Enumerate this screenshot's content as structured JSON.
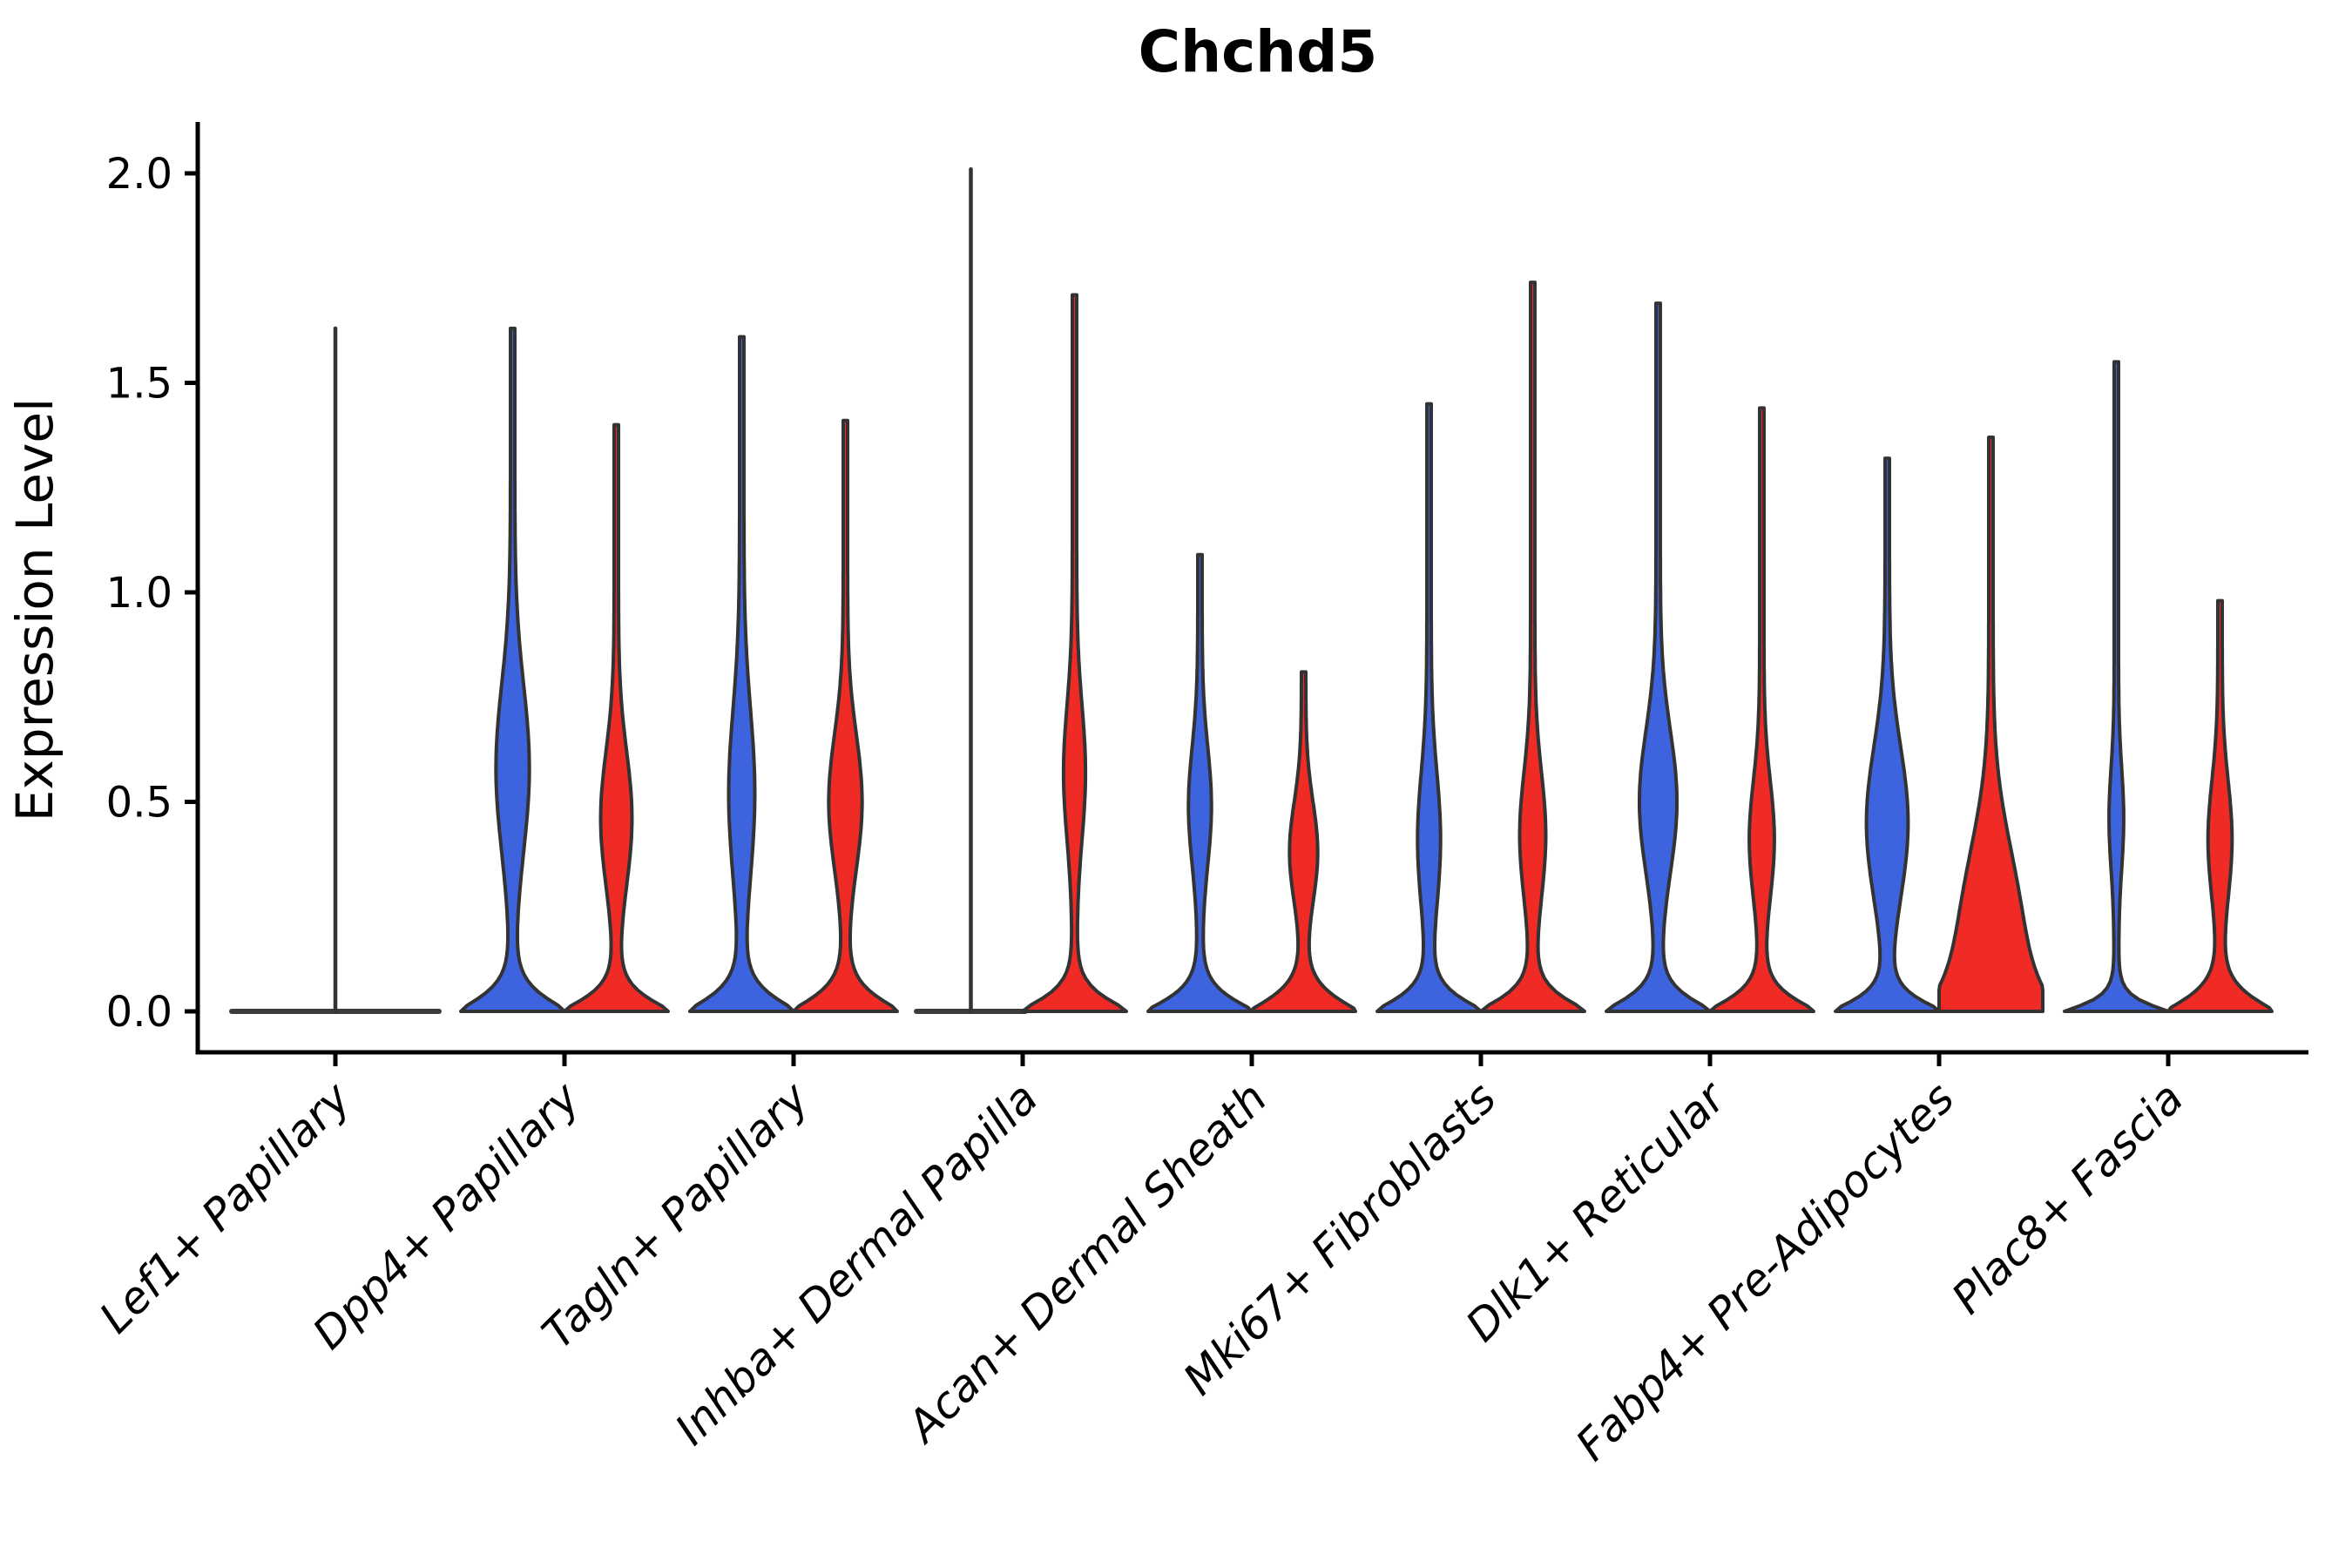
{
  "title": "Chchd5",
  "axis": {
    "ylabel": "Expression Level",
    "yticks": [
      "0.0",
      "0.5",
      "1.0",
      "1.5",
      "2.0"
    ]
  },
  "colors": {
    "blue": "#3E63DE",
    "red": "#F02B26",
    "edge": "#333333",
    "flat_line": "#3C3C3C",
    "axis": "#000000"
  },
  "chart_data": {
    "type": "violin",
    "title": "Chchd5",
    "xlabel": "",
    "ylabel": "Expression Level",
    "ylim": [
      -0.1,
      2.12
    ],
    "grid": false,
    "legend": "none",
    "series": [
      {
        "name": "blue",
        "color": "#3E63DE"
      },
      {
        "name": "red",
        "color": "#F02B26"
      }
    ],
    "categories": [
      {
        "label": "Lef1+ Papillary",
        "violins": [
          {
            "hue": "none",
            "shape": "flat",
            "span": "group",
            "max": 1.63
          }
        ]
      },
      {
        "label": "Dpp4+ Papillary",
        "violins": [
          {
            "hue": "blue",
            "shape": "violin",
            "max": 1.63,
            "bulge_center": 0.58,
            "bulge_sigma": 0.2,
            "bulge_amp": 0.28,
            "foot": 0.055
          },
          {
            "hue": "red",
            "shape": "violin",
            "max": 1.4,
            "bulge_center": 0.46,
            "bulge_sigma": 0.16,
            "bulge_amp": 0.26,
            "foot": 0.05
          }
        ]
      },
      {
        "label": "Tagln+ Papillary",
        "violins": [
          {
            "hue": "blue",
            "shape": "violin",
            "max": 1.61,
            "bulge_center": 0.52,
            "bulge_sigma": 0.2,
            "bulge_amp": 0.21,
            "foot": 0.055
          },
          {
            "hue": "red",
            "shape": "violin",
            "max": 1.41,
            "bulge_center": 0.5,
            "bulge_sigma": 0.16,
            "bulge_amp": 0.28,
            "foot": 0.055
          }
        ]
      },
      {
        "label": "Inhba+ Dermal Papilla",
        "violins": [
          {
            "hue": "blue",
            "shape": "flat",
            "span": "slot",
            "max": 2.01
          },
          {
            "hue": "red",
            "shape": "violin",
            "max": 1.71,
            "bulge_center": 0.57,
            "bulge_sigma": 0.16,
            "bulge_amp": 0.17,
            "foot": 0.05
          }
        ]
      },
      {
        "label": "Acan+ Dermal Sheath",
        "violins": [
          {
            "hue": "blue",
            "shape": "violin",
            "max": 1.09,
            "bulge_center": 0.49,
            "bulge_sigma": 0.14,
            "bulge_amp": 0.18,
            "foot": 0.05
          },
          {
            "hue": "red",
            "shape": "violin",
            "max": 0.81,
            "bulge_center": 0.38,
            "bulge_sigma": 0.12,
            "bulge_amp": 0.23,
            "foot": 0.055
          }
        ]
      },
      {
        "label": "Mki67+ Fibroblasts",
        "violins": [
          {
            "hue": "blue",
            "shape": "violin",
            "max": 1.45,
            "bulge_center": 0.41,
            "bulge_sigma": 0.16,
            "bulge_amp": 0.18,
            "foot": 0.05
          },
          {
            "hue": "red",
            "shape": "violin",
            "max": 1.74,
            "bulge_center": 0.42,
            "bulge_sigma": 0.15,
            "bulge_amp": 0.21,
            "foot": 0.05
          }
        ]
      },
      {
        "label": "Dlk1+ Reticular",
        "violins": [
          {
            "hue": "blue",
            "shape": "violin",
            "max": 1.69,
            "bulge_center": 0.5,
            "bulge_sigma": 0.17,
            "bulge_amp": 0.32,
            "foot": 0.05
          },
          {
            "hue": "red",
            "shape": "violin",
            "max": 1.44,
            "bulge_center": 0.41,
            "bulge_sigma": 0.14,
            "bulge_amp": 0.2,
            "foot": 0.05
          }
        ]
      },
      {
        "label": "Fabp4+ Pre-Adipocytes",
        "violins": [
          {
            "hue": "blue",
            "shape": "violin",
            "max": 1.32,
            "bulge_center": 0.45,
            "bulge_sigma": 0.18,
            "bulge_amp": 0.36,
            "foot": 0.045
          },
          {
            "hue": "red",
            "shape": "violin",
            "max": 1.37,
            "bulge_center": 0.22,
            "bulge_sigma": 0.2,
            "bulge_amp": 0.45,
            "foot": 0.12,
            "foot_p": 1.1
          }
        ]
      },
      {
        "label": "Plac8+ Fascia",
        "violins": [
          {
            "hue": "blue",
            "shape": "violin",
            "max": 1.55,
            "bulge_center": 0.46,
            "bulge_sigma": 0.12,
            "bulge_amp": 0.1,
            "foot": 0.03,
            "foot_p": 1.1
          },
          {
            "hue": "red",
            "shape": "violin",
            "max": 0.98,
            "bulge_center": 0.41,
            "bulge_sigma": 0.14,
            "bulge_amp": 0.19,
            "foot": 0.055
          }
        ]
      }
    ]
  }
}
